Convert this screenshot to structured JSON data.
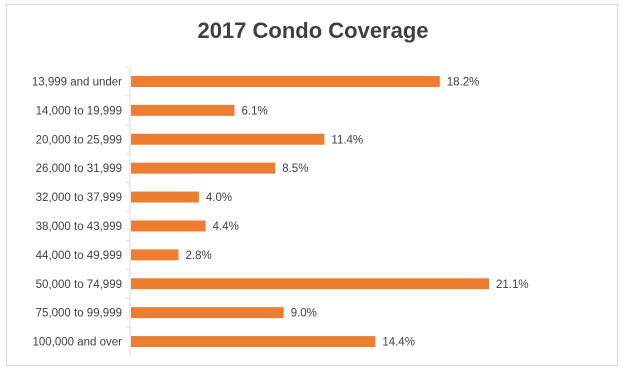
{
  "chart_data": {
    "type": "bar",
    "orientation": "horizontal",
    "title": "2017 Condo Coverage",
    "categories": [
      "13,999 and under",
      "14,000 to 19,999",
      "20,000 to 25,999",
      "26,000 to 31,999",
      "32,000 to 37,999",
      "38,000 to 43,999",
      "44,000 to 49,999",
      "50,000 to 74,999",
      "75,000 to 99,999",
      "100,000 and over"
    ],
    "values": [
      18.2,
      6.1,
      11.4,
      8.5,
      4.0,
      4.4,
      2.8,
      21.1,
      9.0,
      14.4
    ],
    "value_labels": [
      "18.2%",
      "6.1%",
      "11.4%",
      "8.5%",
      "4.0%",
      "4.4%",
      "2.8%",
      "21.1%",
      "9.0%",
      "14.4%"
    ],
    "xlabel": "",
    "ylabel": "",
    "xlim": [
      0,
      22
    ],
    "grid": false,
    "bar_color": "#ED7D31"
  }
}
